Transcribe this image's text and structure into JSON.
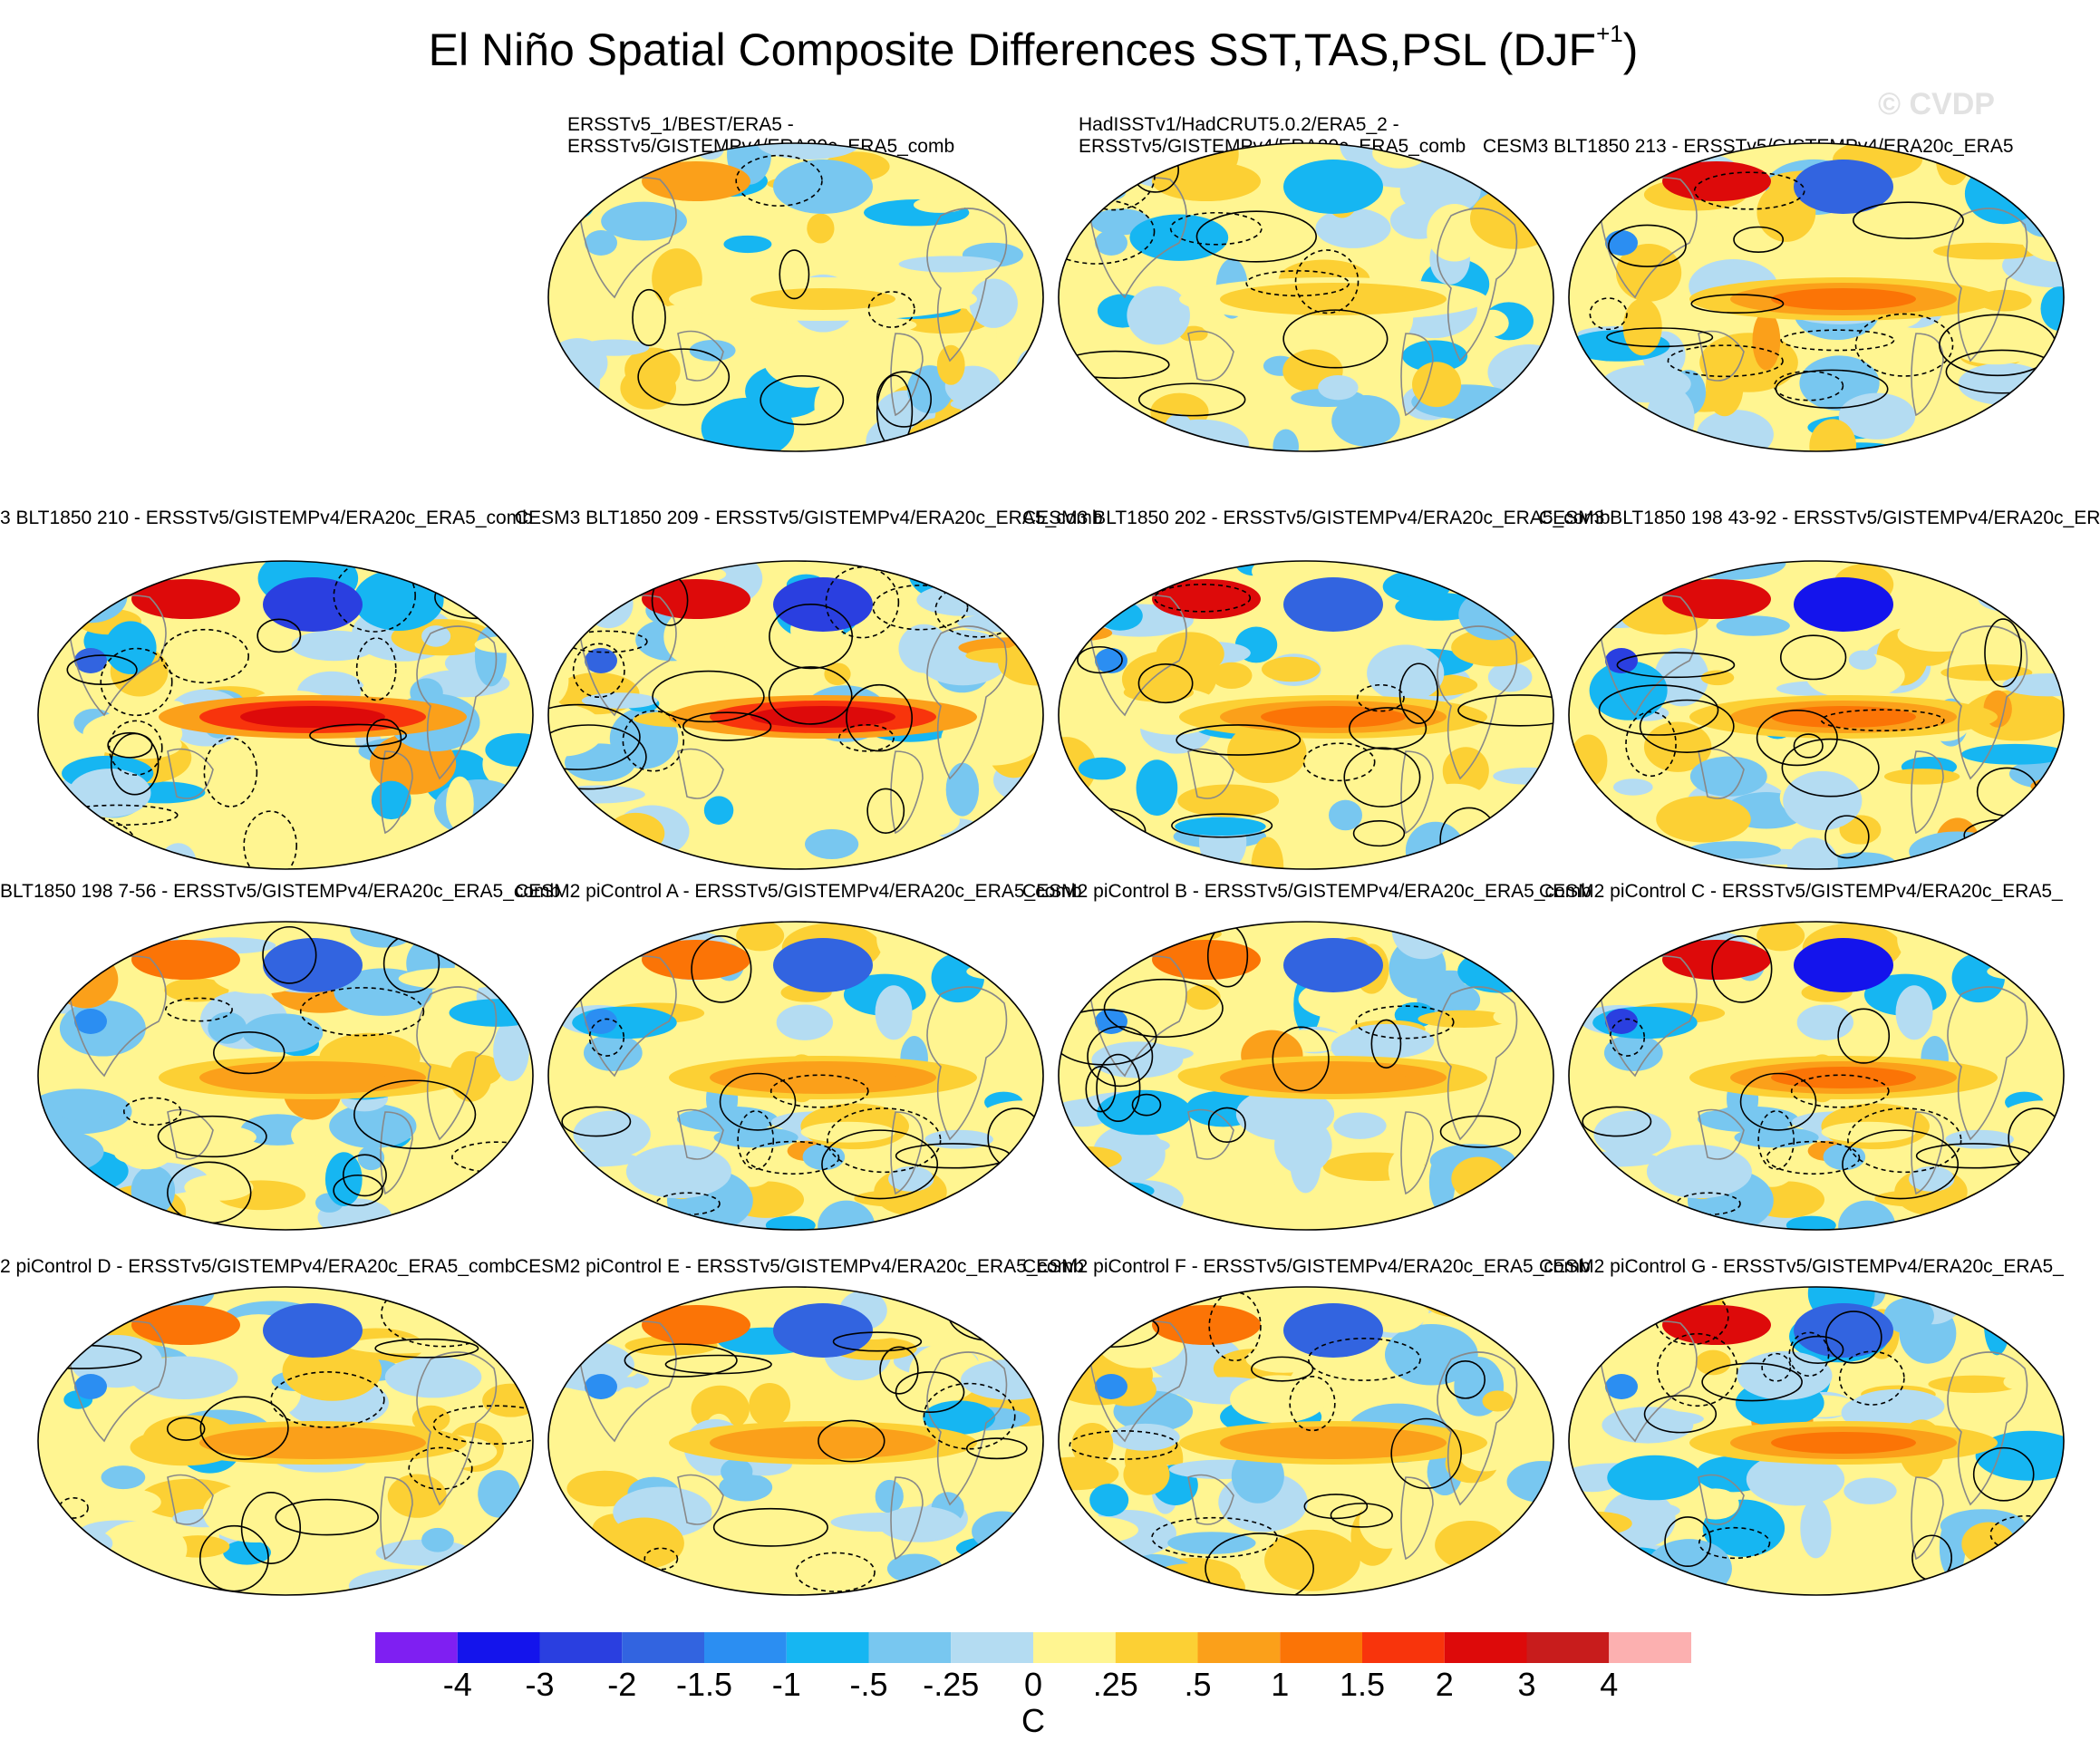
{
  "title_main": "El Niño Spatial Composite Differences SST,TAS,PSL (DJF",
  "title_sup": "+1",
  "title_end": ")",
  "watermark": "© CVDP",
  "colors": {
    "land_outline": "#888888",
    "contour": "#000000",
    "map_border": "#000000"
  },
  "panels": [
    {
      "label": "ERSSTv5_1/BEST/ERA5 -\nERSSTv5/GISTEMPv4/ERA20c_ERA5_comb",
      "shown": true,
      "pattern": "obs1"
    },
    {
      "label": "HadISSTv1/HadCRUT5.0.2/ERA5_2 -\nERSSTv5/GISTEMPv4/ERA20c_ERA5_comb",
      "shown": true,
      "pattern": "obs2"
    },
    {
      "label": "CESM3 BLT1850 213 - ERSSTv5/GISTEMPv4/ERA20c_ERA5",
      "shown": true,
      "pattern": "model-a"
    },
    {
      "label": "3 BLT1850 210 - ERSSTv5/GISTEMPv4/ERA20c_ERA5_comb",
      "shown": true,
      "pattern": "model-strong"
    },
    {
      "label": "CESM3 BLT1850 209 - ERSSTv5/GISTEMPv4/ERA20c_ERA5_comb",
      "shown": true,
      "pattern": "model-strong"
    },
    {
      "label": "CESM3 BLT1850 202 - ERSSTv5/GISTEMPv4/ERA20c_ERA5_comb",
      "shown": true,
      "pattern": "model-a"
    },
    {
      "label": "CESM3 BLT1850 198 43-92 - ERSSTv5/GISTEMPv4/ERA20c_ER",
      "shown": true,
      "pattern": "model-cold"
    },
    {
      "label": "BLT1850 198 7-56 - ERSSTv5/GISTEMPv4/ERA20c_ERA5_comb",
      "shown": true,
      "pattern": "model-b"
    },
    {
      "label": "CESM2 piControl A - ERSSTv5/GISTEMPv4/ERA20c_ERA5_comb",
      "shown": true,
      "pattern": "model-b"
    },
    {
      "label": "CESM2 piControl B - ERSSTv5/GISTEMPv4/ERA20c_ERA5_comb",
      "shown": true,
      "pattern": "model-b"
    },
    {
      "label": "CESM2 piControl C - ERSSTv5/GISTEMPv4/ERA20c_ERA5_",
      "shown": true,
      "pattern": "model-cold"
    },
    {
      "label": "2 piControl D - ERSSTv5/GISTEMPv4/ERA20c_ERA5_comb",
      "shown": true,
      "pattern": "model-b"
    },
    {
      "label": "CESM2 piControl E - ERSSTv5/GISTEMPv4/ERA20c_ERA5_comb",
      "shown": true,
      "pattern": "model-b"
    },
    {
      "label": "CESM2 piControl F - ERSSTv5/GISTEMPv4/ERA20c_ERA5_comb",
      "shown": true,
      "pattern": "model-b"
    },
    {
      "label": "CESM2 piControl G - ERSSTv5/GISTEMPv4/ERA20c_ERA5_",
      "shown": true,
      "pattern": "model-a"
    }
  ],
  "chart_data": {
    "type": "map-panels",
    "title": "El Niño Spatial Composite Differences SST,TAS,PSL (DJF+1)",
    "variables": [
      "SST",
      "TAS",
      "PSL"
    ],
    "season": "DJF+1",
    "shading": "SST/TAS difference",
    "contours": "PSL difference (solid positive, dashed negative)",
    "grid": {
      "rows": 4,
      "cols": 4,
      "empty_slots": [
        0
      ]
    },
    "colorbar": {
      "units": "C",
      "levels": [
        "-4",
        "-3",
        "-2",
        "-1.5",
        "-1",
        "-.5",
        "-.25",
        "0",
        ".25",
        ".5",
        "1",
        "1.5",
        "2",
        "3",
        "4"
      ],
      "colors": [
        "#7f1ff2",
        "#1414ec",
        "#2a3fe0",
        "#3264e0",
        "#2b8ef2",
        "#16b6f2",
        "#78c7f0",
        "#b4dcf2",
        "#fff591",
        "#fcd034",
        "#fba01a",
        "#fb7406",
        "#f8340c",
        "#dd0a0a",
        "#c81c1c",
        "#fcb0b0"
      ]
    }
  }
}
